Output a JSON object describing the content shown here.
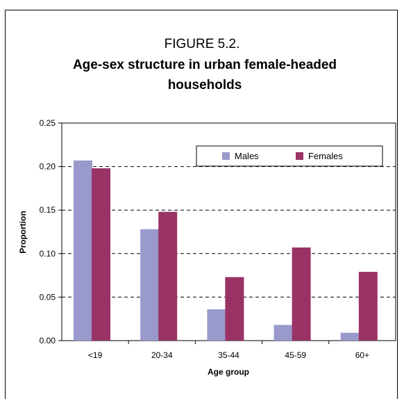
{
  "figure": {
    "label": "FIGURE 5.2.",
    "title": "Age-sex structure in urban female-headed households"
  },
  "chart_data": {
    "type": "bar",
    "title": "Age-sex structure in urban female-headed households",
    "xlabel": "Age group",
    "ylabel": "Proportion",
    "categories": [
      "<19",
      "20-34",
      "35-44",
      "45-59",
      "60+"
    ],
    "series": [
      {
        "name": "Males",
        "values": [
          0.207,
          0.128,
          0.036,
          0.018,
          0.009
        ],
        "color": "#9999cc"
      },
      {
        "name": "Females",
        "values": [
          0.198,
          0.148,
          0.073,
          0.107,
          0.079
        ],
        "color": "#993366"
      }
    ],
    "ylim": [
      0,
      0.25
    ],
    "yticks": [
      "0.00",
      "0.05",
      "0.10",
      "0.15",
      "0.20",
      "0.25"
    ],
    "grid": "dashed horizontal",
    "legend_position": "top-right"
  }
}
